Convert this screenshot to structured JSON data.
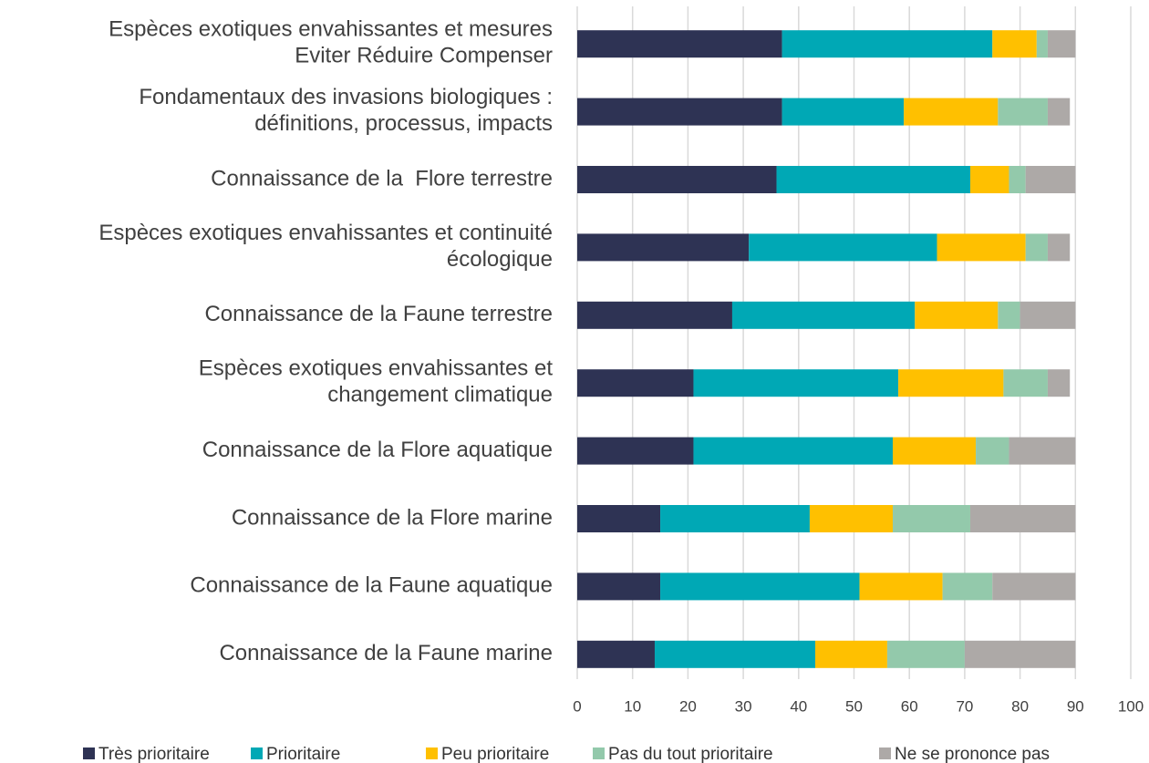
{
  "chart_data": {
    "type": "stacked-barh",
    "categories": [
      "Espèces exotiques envahissantes et mesures\nEviter Réduire Compenser",
      "Fondamentaux des invasions biologiques :\ndéfinitions, processus, impacts",
      "Connaissance de la  Flore terrestre",
      "Espèces exotiques envahissantes et continuité\nécologique",
      "Connaissance de la Faune terrestre",
      "Espèces exotiques envahissantes et\nchangement climatique",
      "Connaissance de la Flore aquatique",
      "Connaissance de la Flore marine",
      "Connaissance de la Faune aquatique",
      "Connaissance de la Faune marine"
    ],
    "series": [
      {
        "name": "Très prioritaire",
        "color": "#2e3354",
        "values": [
          37,
          37,
          36,
          31,
          28,
          21,
          21,
          15,
          15,
          14
        ]
      },
      {
        "name": "Prioritaire",
        "color": "#00a8b5",
        "values": [
          38,
          22,
          35,
          34,
          33,
          37,
          36,
          27,
          36,
          29
        ]
      },
      {
        "name": "Peu prioritaire",
        "color": "#ffc000",
        "values": [
          8,
          17,
          7,
          16,
          15,
          19,
          15,
          15,
          15,
          13
        ]
      },
      {
        "name": "Pas du tout prioritaire",
        "color": "#93c9ab",
        "values": [
          2,
          9,
          3,
          4,
          4,
          8,
          6,
          14,
          9,
          14
        ]
      },
      {
        "name": "Ne se prononce pas",
        "color": "#ada9a7",
        "values": [
          5,
          4,
          9,
          4,
          10,
          4,
          12,
          19,
          15,
          20
        ]
      }
    ],
    "xlim": [
      0,
      100
    ],
    "xticks": [
      0,
      10,
      20,
      30,
      40,
      50,
      60,
      70,
      80,
      90,
      100
    ],
    "grid": true,
    "legend": "bottom"
  }
}
